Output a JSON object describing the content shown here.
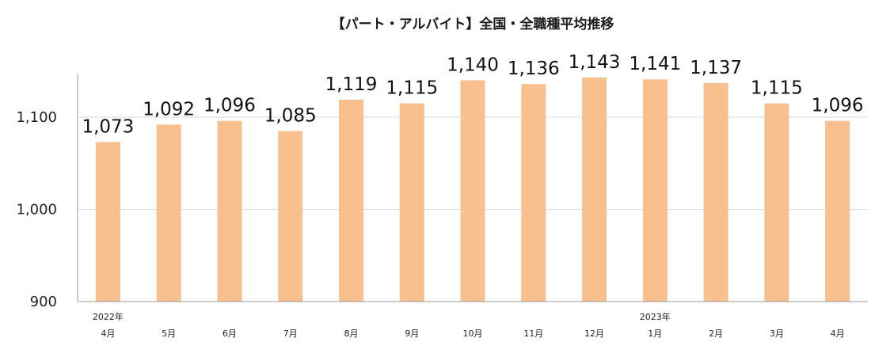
{
  "chart_data": {
    "type": "bar",
    "title": "【パート・アルバイト】全国・全職種平均推移",
    "categories": [
      "4月",
      "5月",
      "6月",
      "7月",
      "8月",
      "9月",
      "10月",
      "11月",
      "12月",
      "1月",
      "2月",
      "3月",
      "4月"
    ],
    "year_labels": [
      "2022年",
      "",
      "",
      "",
      "",
      "",
      "",
      "",
      "",
      "2023年",
      "",
      "",
      ""
    ],
    "values": [
      1073,
      1092,
      1096,
      1085,
      1119,
      1115,
      1140,
      1136,
      1143,
      1141,
      1137,
      1115,
      1096
    ],
    "value_labels": [
      "1,073",
      "1,092",
      "1,096",
      "1,085",
      "1,119",
      "1,115",
      "1,140",
      "1,136",
      "1,143",
      "1,141",
      "1,137",
      "1,115",
      "1,096"
    ],
    "yticks": [
      900,
      1000,
      1100
    ],
    "ytick_labels": [
      "900",
      "1,000",
      "1,100"
    ],
    "ylim": [
      900,
      1156
    ],
    "grid": true,
    "colors": {
      "bar": "#F9C08F",
      "grid": "#d9d9d9",
      "axis": "#999999"
    }
  }
}
